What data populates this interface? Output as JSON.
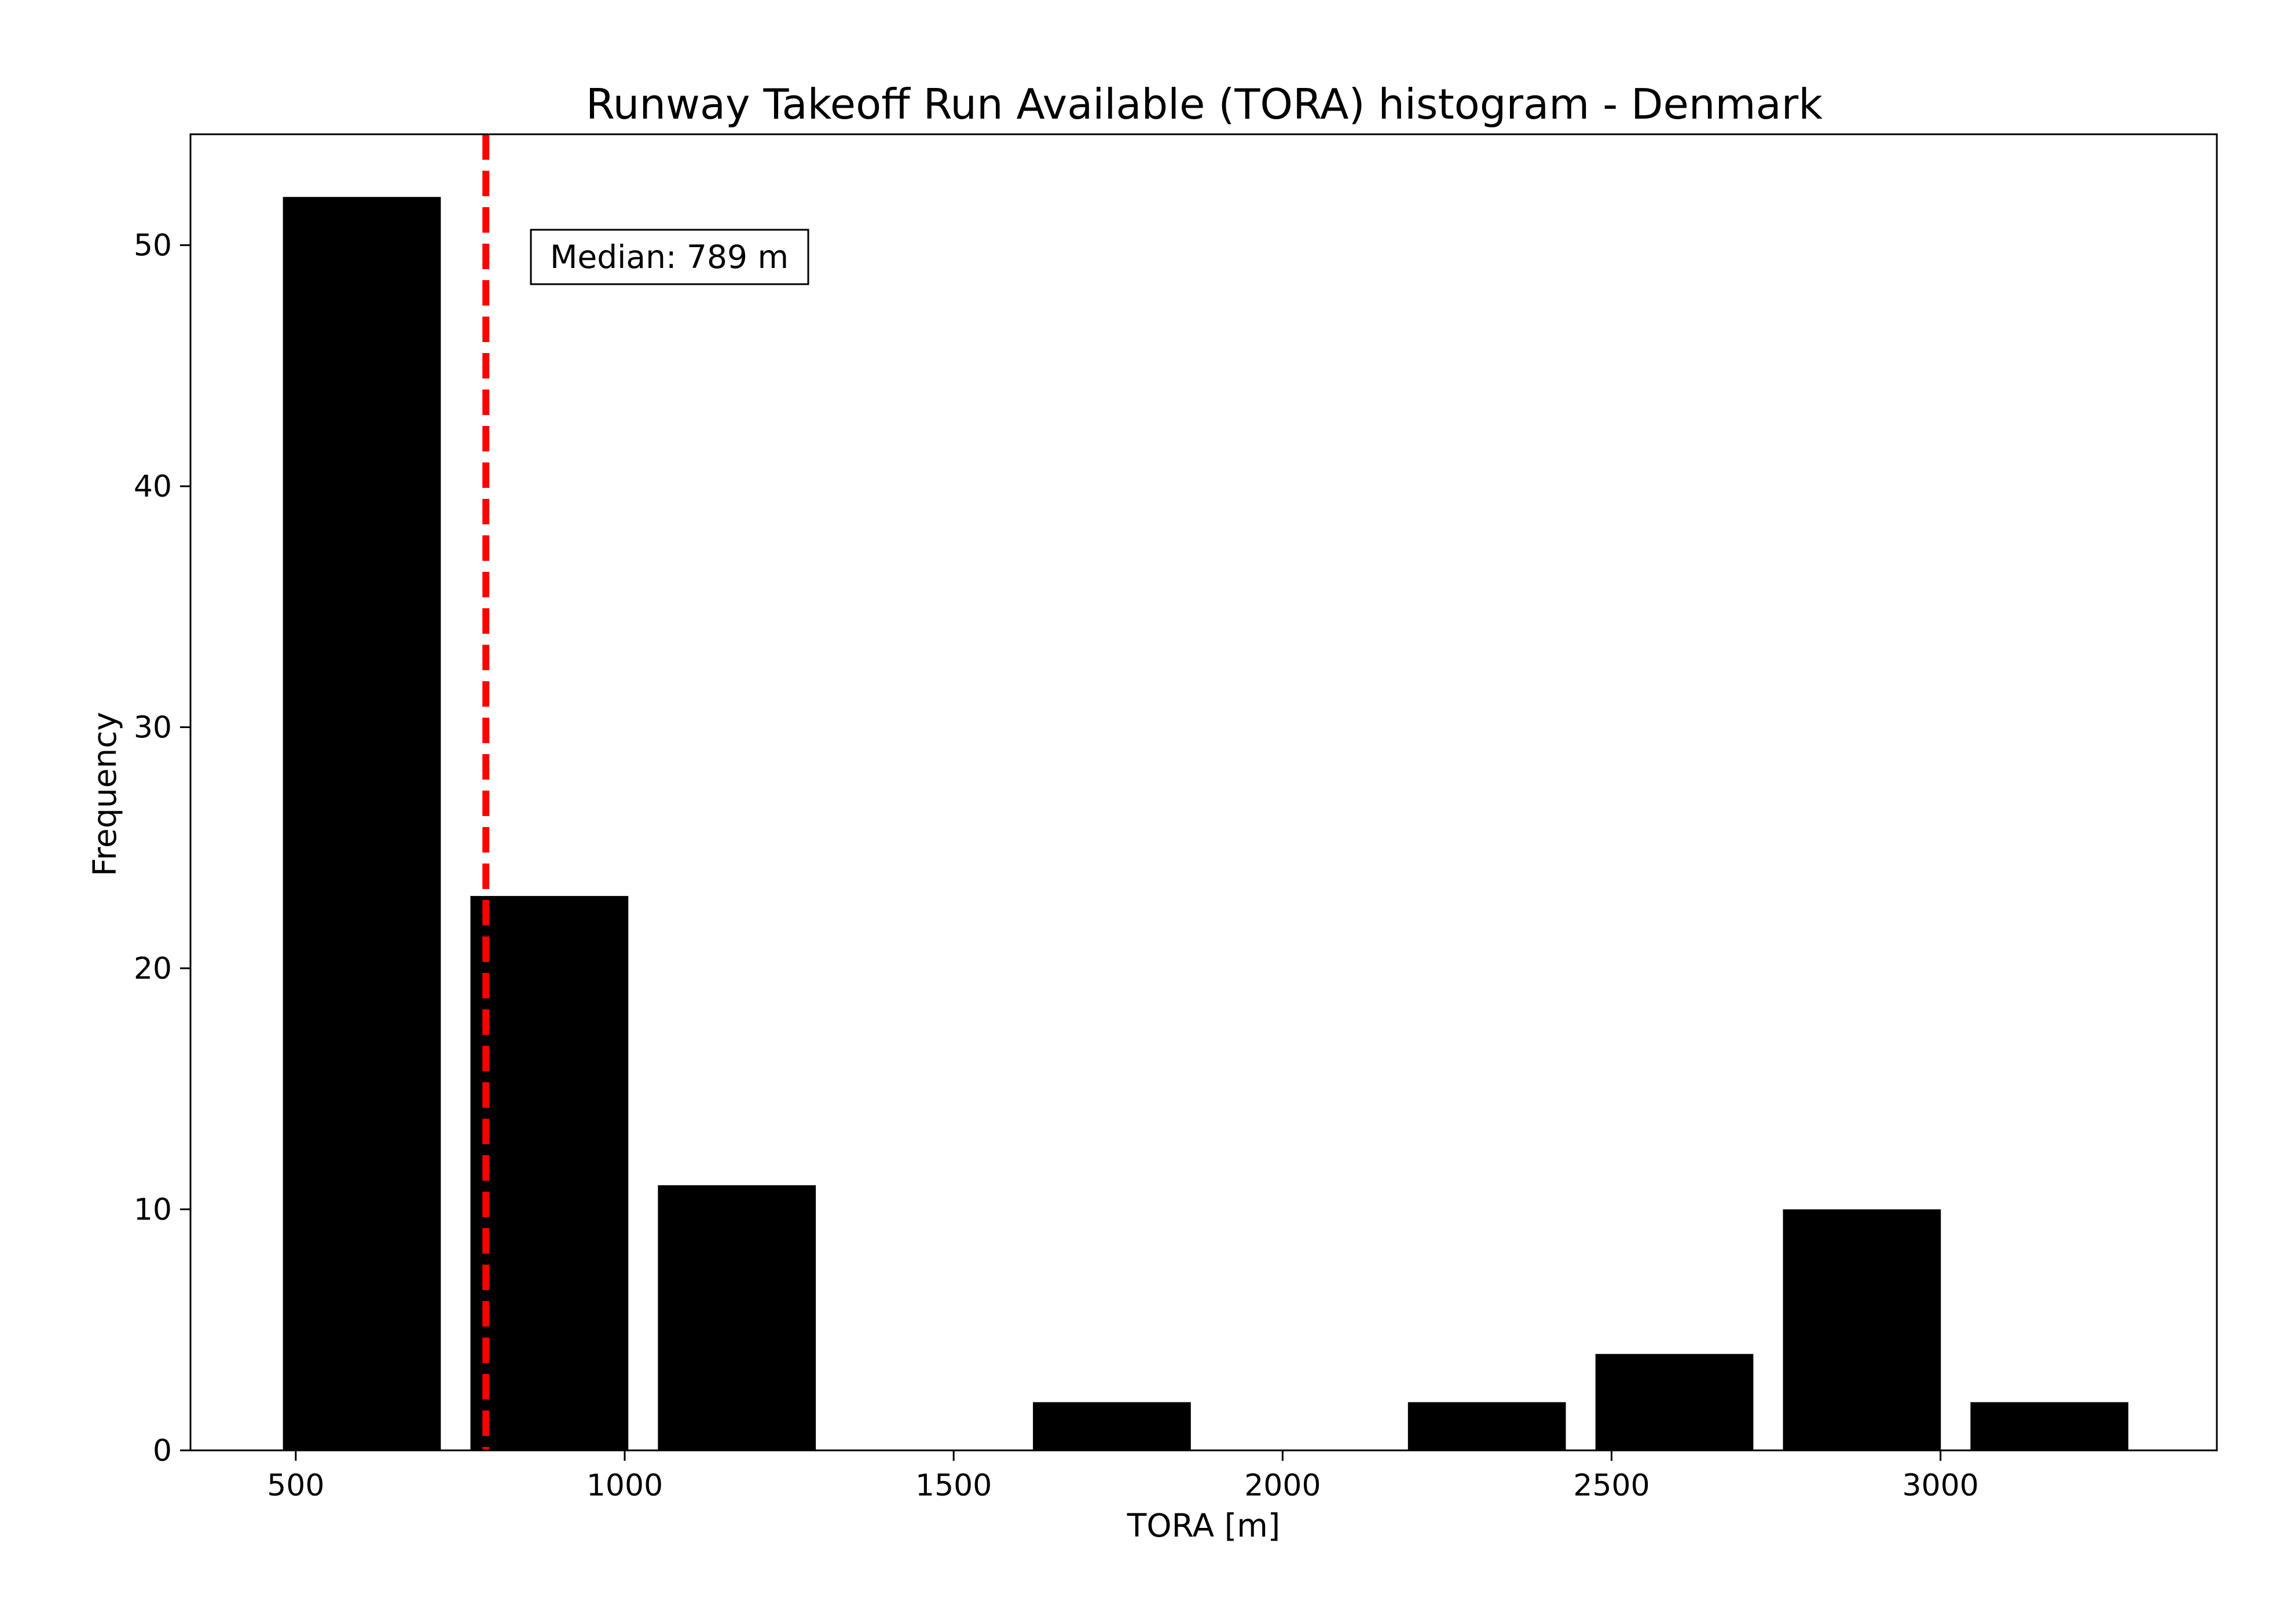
{
  "chart_data": {
    "type": "bar",
    "title": "Runway Takeoff Run Available (TORA) histogram - Denmark",
    "xlabel": "TORA [m]",
    "ylabel": "Frequency",
    "xlim": [
      340,
      3420
    ],
    "ylim": [
      0,
      54.6
    ],
    "xticks": [
      "500",
      "1000",
      "1500",
      "2000",
      "2500",
      "3000"
    ],
    "yticks": [
      "0",
      "10",
      "20",
      "30",
      "40",
      "50"
    ],
    "bins": [
      {
        "start": 480.5,
        "end": 720.5,
        "count": 52
      },
      {
        "start": 765.5,
        "end": 1005.5,
        "count": 23
      },
      {
        "start": 1050.5,
        "end": 1290.5,
        "count": 11
      },
      {
        "start": 1335.5,
        "end": 1575.5,
        "count": 0
      },
      {
        "start": 1620.5,
        "end": 1860.5,
        "count": 2
      },
      {
        "start": 1905.5,
        "end": 2145.5,
        "count": 0
      },
      {
        "start": 2190.5,
        "end": 2430.5,
        "count": 2
      },
      {
        "start": 2475.5,
        "end": 2715.5,
        "count": 4
      },
      {
        "start": 2760.5,
        "end": 3000.5,
        "count": 10
      },
      {
        "start": 3045.5,
        "end": 3285.5,
        "count": 2
      }
    ],
    "bar_color": "#000000",
    "median": 789,
    "median_line_color": "#ff0000",
    "annotation": "Median: 789 m",
    "grid": false,
    "legend": "none"
  }
}
